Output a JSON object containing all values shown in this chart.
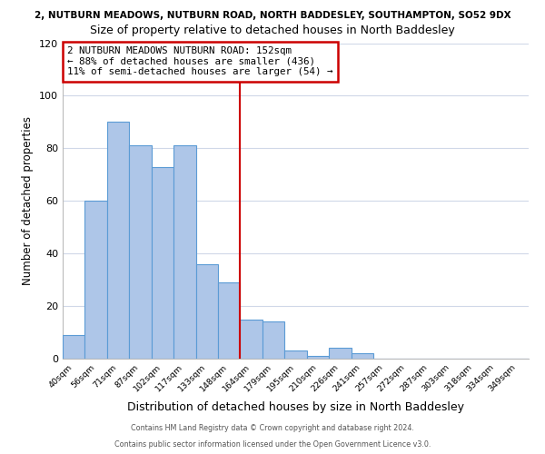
{
  "title_top": "2, NUTBURN MEADOWS, NUTBURN ROAD, NORTH BADDESLEY, SOUTHAMPTON, SO52 9DX",
  "title_main": "Size of property relative to detached houses in North Baddesley",
  "xlabel": "Distribution of detached houses by size in North Baddesley",
  "ylabel": "Number of detached properties",
  "bar_labels": [
    "40sqm",
    "56sqm",
    "71sqm",
    "87sqm",
    "102sqm",
    "117sqm",
    "133sqm",
    "148sqm",
    "164sqm",
    "179sqm",
    "195sqm",
    "210sqm",
    "226sqm",
    "241sqm",
    "257sqm",
    "272sqm",
    "287sqm",
    "303sqm",
    "318sqm",
    "334sqm",
    "349sqm"
  ],
  "bar_values": [
    9,
    60,
    90,
    81,
    73,
    81,
    36,
    29,
    15,
    14,
    3,
    1,
    4,
    2,
    0,
    0,
    0,
    0,
    0,
    0,
    0
  ],
  "bar_color": "#aec6e8",
  "bar_edge_color": "#5b9bd5",
  "vline_x": 7.5,
  "vline_color": "#cc0000",
  "ylim": [
    0,
    120
  ],
  "yticks": [
    0,
    20,
    40,
    60,
    80,
    100,
    120
  ],
  "annotation_text": "2 NUTBURN MEADOWS NUTBURN ROAD: 152sqm\n← 88% of detached houses are smaller (436)\n11% of semi-detached houses are larger (54) →",
  "footer_line1": "Contains HM Land Registry data © Crown copyright and database right 2024.",
  "footer_line2": "Contains public sector information licensed under the Open Government Licence v3.0.",
  "background_color": "#ffffff",
  "grid_color": "#d0d8e8"
}
